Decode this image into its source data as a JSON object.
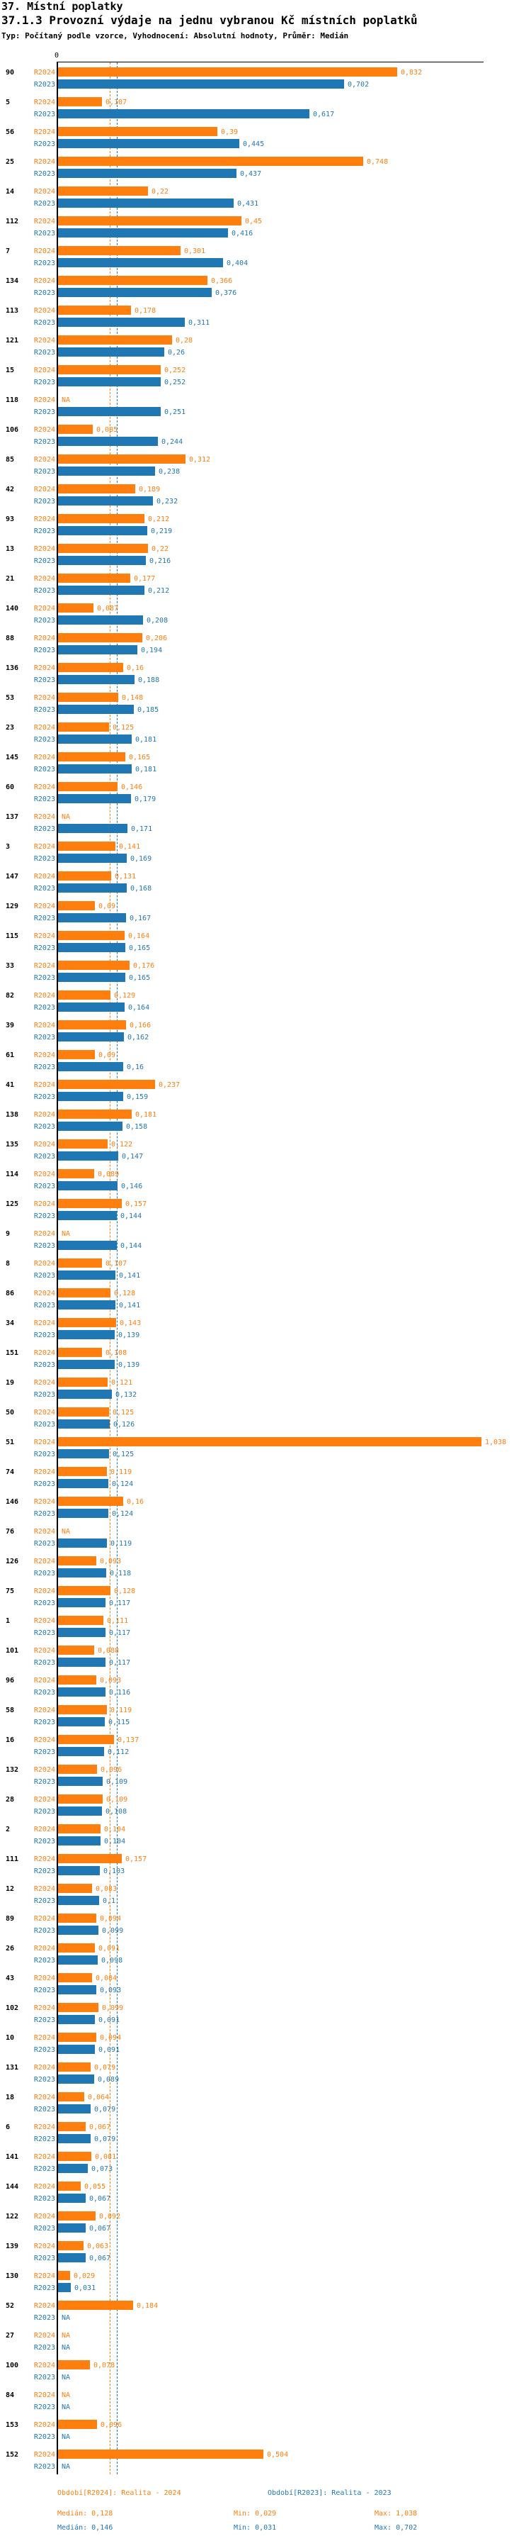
{
  "header": {
    "title": "37. Místní poplatky",
    "subtitle": "37.1.3 Provozní výdaje na jednu vybranou Kč místních poplatků",
    "meta": "Typ: Počítaný podle vzorce, Vyhodnocení: Absolutní hodnoty, Průměr: Medián"
  },
  "axis": {
    "zero_label": "0"
  },
  "series": {
    "r2024": {
      "label": "R2024",
      "color": "#FF7F0E"
    },
    "r2023": {
      "label": "R2023",
      "color": "#1F77B4"
    }
  },
  "na_label": "NA",
  "footer": {
    "legend_r2024": "Období[R2024]: Realita - 2024",
    "legend_r2023": "Období[R2023]: Realita - 2023",
    "stats_r2024": {
      "median": "Medián: 0,128",
      "min": "Min: 0,029",
      "max": "Max: 1,038"
    },
    "stats_r2023": {
      "median": "Medián: 0,146",
      "min": "Min: 0,031",
      "max": "Max: 0,702"
    }
  },
  "chart_data": {
    "type": "bar",
    "orientation": "horizontal",
    "title": "37.1.3 Provozní výdaje na jednu vybranou Kč místních poplatků",
    "xlabel": "",
    "ylabel": "",
    "xlim": [
      0,
      1.05
    ],
    "grid": false,
    "legend_position": "bottom",
    "categories": [
      "90",
      "5",
      "56",
      "25",
      "14",
      "112",
      "7",
      "134",
      "113",
      "121",
      "15",
      "118",
      "106",
      "85",
      "42",
      "93",
      "13",
      "21",
      "140",
      "88",
      "136",
      "53",
      "23",
      "145",
      "60",
      "137",
      "3",
      "147",
      "129",
      "115",
      "33",
      "82",
      "39",
      "61",
      "41",
      "138",
      "135",
      "114",
      "125",
      "9",
      "8",
      "86",
      "34",
      "151",
      "19",
      "50",
      "51",
      "74",
      "146",
      "76",
      "126",
      "75",
      "1",
      "101",
      "96",
      "58",
      "16",
      "132",
      "28",
      "2",
      "111",
      "12",
      "89",
      "26",
      "43",
      "102",
      "10",
      "131",
      "18",
      "6",
      "141",
      "144",
      "122",
      "139",
      "130",
      "52",
      "27",
      "100",
      "84",
      "153",
      "152"
    ],
    "series": [
      {
        "name": "Období[R2024]: Realita - 2024",
        "values": [
          0.832,
          0.107,
          0.39,
          0.748,
          0.22,
          0.45,
          0.301,
          0.366,
          0.178,
          0.28,
          0.252,
          null,
          0.085,
          0.312,
          0.189,
          0.212,
          0.22,
          0.177,
          0.087,
          0.206,
          0.16,
          0.148,
          0.125,
          0.165,
          0.146,
          null,
          0.141,
          0.131,
          0.09,
          0.164,
          0.176,
          0.129,
          0.166,
          0.09,
          0.237,
          0.181,
          0.122,
          0.089,
          0.157,
          null,
          0.107,
          0.128,
          0.143,
          0.108,
          0.121,
          0.125,
          1.038,
          0.119,
          0.16,
          null,
          0.093,
          0.128,
          0.111,
          0.088,
          0.093,
          0.119,
          0.137,
          0.096,
          0.109,
          0.104,
          0.157,
          0.083,
          0.094,
          0.091,
          0.084,
          0.099,
          0.094,
          0.079,
          0.064,
          0.067,
          0.081,
          0.055,
          0.092,
          0.063,
          0.029,
          0.184,
          null,
          0.078,
          null,
          0.096,
          0.504
        ]
      },
      {
        "name": "Období[R2023]: Realita - 2023",
        "values": [
          0.702,
          0.617,
          0.445,
          0.437,
          0.431,
          0.416,
          0.404,
          0.376,
          0.311,
          0.26,
          0.252,
          0.251,
          0.244,
          0.238,
          0.232,
          0.219,
          0.216,
          0.212,
          0.208,
          0.194,
          0.188,
          0.185,
          0.181,
          0.181,
          0.179,
          0.171,
          0.169,
          0.168,
          0.167,
          0.165,
          0.165,
          0.164,
          0.162,
          0.16,
          0.159,
          0.158,
          0.147,
          0.146,
          0.144,
          0.144,
          0.141,
          0.141,
          0.139,
          0.139,
          0.132,
          0.126,
          0.125,
          0.124,
          0.124,
          0.119,
          0.118,
          0.117,
          0.117,
          0.117,
          0.116,
          0.115,
          0.112,
          0.109,
          0.108,
          0.104,
          0.103,
          0.1,
          0.099,
          0.098,
          0.093,
          0.091,
          0.091,
          0.089,
          0.079,
          0.079,
          0.073,
          0.067,
          0.067,
          0.067,
          0.031,
          null,
          null,
          null,
          null,
          null,
          null
        ]
      }
    ],
    "medians": {
      "R2024": 0.128,
      "R2023": 0.146
    },
    "stats": {
      "R2024": {
        "median": 0.128,
        "min": 0.029,
        "max": 1.038
      },
      "R2023": {
        "median": 0.146,
        "min": 0.031,
        "max": 0.702
      }
    }
  }
}
